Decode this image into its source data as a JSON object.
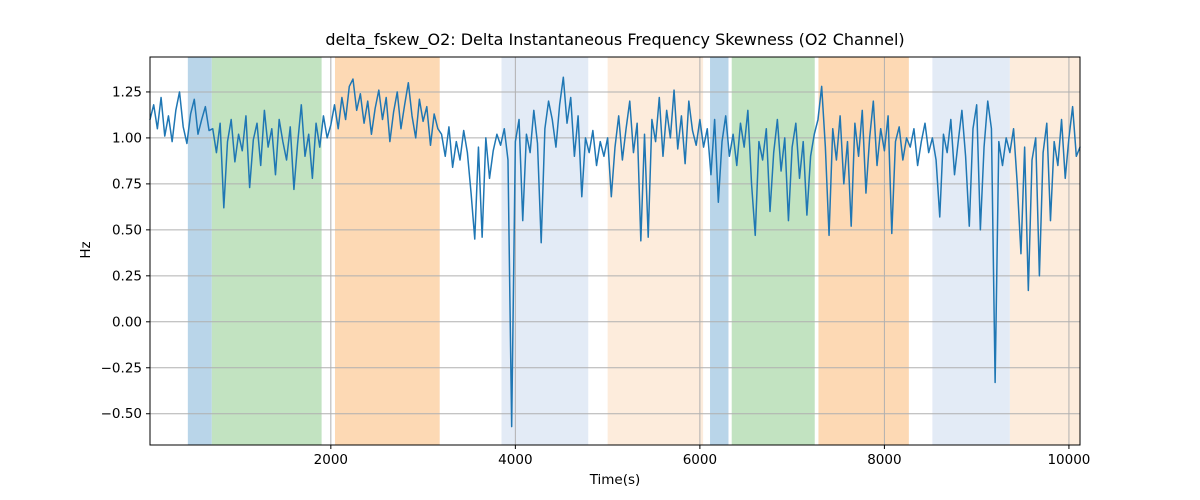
{
  "chart_data": {
    "type": "line",
    "title": "delta_fskew_O2: Delta Instantaneous Frequency Skewness (O2 Channel)",
    "xlabel": "Time(s)",
    "ylabel": "Hz",
    "xlim": [
      40,
      10120
    ],
    "ylim": [
      -0.67,
      1.44
    ],
    "grid": true,
    "grid_color": "#b0b0b0",
    "legend": "none",
    "xticks": [
      2000,
      4000,
      6000,
      8000,
      10000
    ],
    "xtick_labels": [
      "2000",
      "4000",
      "6000",
      "8000",
      "10000"
    ],
    "yticks": [
      -0.5,
      -0.25,
      0.0,
      0.25,
      0.5,
      0.75,
      1.0,
      1.25
    ],
    "ytick_labels": [
      "−0.50",
      "−0.25",
      "0.00",
      "0.25",
      "0.50",
      "0.75",
      "1.00",
      "1.25"
    ],
    "line_color": "#1f77b4",
    "line_width": 1.5,
    "bands": [
      {
        "name": "band-blue-1",
        "start": 450,
        "end": 710,
        "color": "#b9d5e9"
      },
      {
        "name": "band-green-1",
        "start": 710,
        "end": 1900,
        "color": "#c2e3c1"
      },
      {
        "name": "band-orange-1",
        "start": 2045,
        "end": 3180,
        "color": "#fdd9b4"
      },
      {
        "name": "band-lightblue-1",
        "start": 3850,
        "end": 4790,
        "color": "#e3ebf6"
      },
      {
        "name": "band-lightorange-1",
        "start": 5000,
        "end": 6035,
        "color": "#fdecdc"
      },
      {
        "name": "band-blue-2",
        "start": 6110,
        "end": 6310,
        "color": "#b9d5e9"
      },
      {
        "name": "band-green-2",
        "start": 6345,
        "end": 7245,
        "color": "#c2e3c1"
      },
      {
        "name": "band-orange-2",
        "start": 7285,
        "end": 8265,
        "color": "#fdd9b4"
      },
      {
        "name": "band-lightblue-2",
        "start": 8520,
        "end": 9360,
        "color": "#e3ebf6"
      },
      {
        "name": "band-lightorange-2",
        "start": 9360,
        "end": 10120,
        "color": "#fdecdc"
      }
    ],
    "series": [
      {
        "name": "delta_fskew_O2",
        "x_start": 40,
        "x_step": 40,
        "values": [
          1.1,
          1.18,
          1.05,
          1.22,
          1.01,
          1.12,
          0.98,
          1.15,
          1.25,
          1.06,
          0.97,
          1.13,
          1.21,
          1.02,
          1.1,
          1.17,
          1.04,
          1.05,
          0.92,
          1.08,
          0.62,
          0.98,
          1.1,
          0.87,
          1.02,
          0.93,
          1.12,
          0.73,
          0.99,
          1.08,
          0.85,
          1.15,
          0.95,
          1.05,
          0.8,
          1.1,
          0.98,
          0.88,
          1.06,
          0.72,
          0.97,
          1.18,
          0.9,
          1.02,
          0.78,
          1.08,
          0.95,
          1.12,
          1.0,
          1.07,
          1.18,
          1.05,
          1.22,
          1.1,
          1.28,
          1.32,
          1.15,
          1.24,
          1.08,
          1.2,
          1.02,
          1.16,
          1.26,
          1.1,
          1.22,
          0.98,
          1.14,
          1.25,
          1.05,
          1.18,
          1.3,
          1.12,
          1.0,
          1.21,
          1.09,
          1.17,
          0.96,
          1.13,
          1.05,
          1.02,
          0.9,
          1.06,
          0.84,
          0.98,
          0.88,
          1.04,
          0.92,
          0.7,
          0.45,
          0.95,
          0.46,
          1.0,
          0.78,
          0.93,
          1.02,
          0.96,
          1.05,
          0.88,
          -0.57,
          0.98,
          1.1,
          0.55,
          1.02,
          0.92,
          1.15,
          0.97,
          0.43,
          1.05,
          1.2,
          1.1,
          0.95,
          1.18,
          1.33,
          1.08,
          1.22,
          0.9,
          1.12,
          0.68,
          1.0,
          0.92,
          1.04,
          0.85,
          0.98,
          0.9,
          1.0,
          0.68,
          0.95,
          1.12,
          0.88,
          1.05,
          1.2,
          0.92,
          1.08,
          0.44,
          1.02,
          0.46,
          1.1,
          0.98,
          1.22,
          0.9,
          1.15,
          1.0,
          1.26,
          0.94,
          1.12,
          0.86,
          1.2,
          1.04,
          0.96,
          1.1,
          0.95,
          1.05,
          0.8,
          1.1,
          0.65,
          0.98,
          1.12,
          0.9,
          1.02,
          0.85,
          1.08,
          0.95,
          1.15,
          0.75,
          0.47,
          0.98,
          0.88,
          1.05,
          0.6,
          0.92,
          1.1,
          0.82,
          1.0,
          0.55,
          0.95,
          1.08,
          0.78,
          0.98,
          0.58,
          0.9,
          1.02,
          1.1,
          1.28,
          0.95,
          0.47,
          1.05,
          0.88,
          1.12,
          0.75,
          0.98,
          0.52,
          1.08,
          0.9,
          1.15,
          0.7,
          1.0,
          1.2,
          0.85,
          1.05,
          0.93,
          1.12,
          0.48,
          0.98,
          1.06,
          0.88,
          1.0,
          0.95,
          1.05,
          0.85,
          0.98,
          1.08,
          0.92,
          1.0,
          0.88,
          0.57,
          1.02,
          0.92,
          1.1,
          0.8,
          0.98,
          1.15,
          0.9,
          0.52,
          1.05,
          1.18,
          0.5,
          0.95,
          1.2,
          1.05,
          -0.33,
          0.98,
          0.85,
          1.0,
          0.92,
          1.05,
          0.75,
          0.37,
          0.95,
          0.17,
          0.88,
          1.0,
          0.25,
          0.92,
          1.08,
          0.55,
          0.98,
          0.85,
          1.1,
          0.78,
          1.0,
          1.17,
          0.9,
          0.95
        ]
      }
    ]
  }
}
